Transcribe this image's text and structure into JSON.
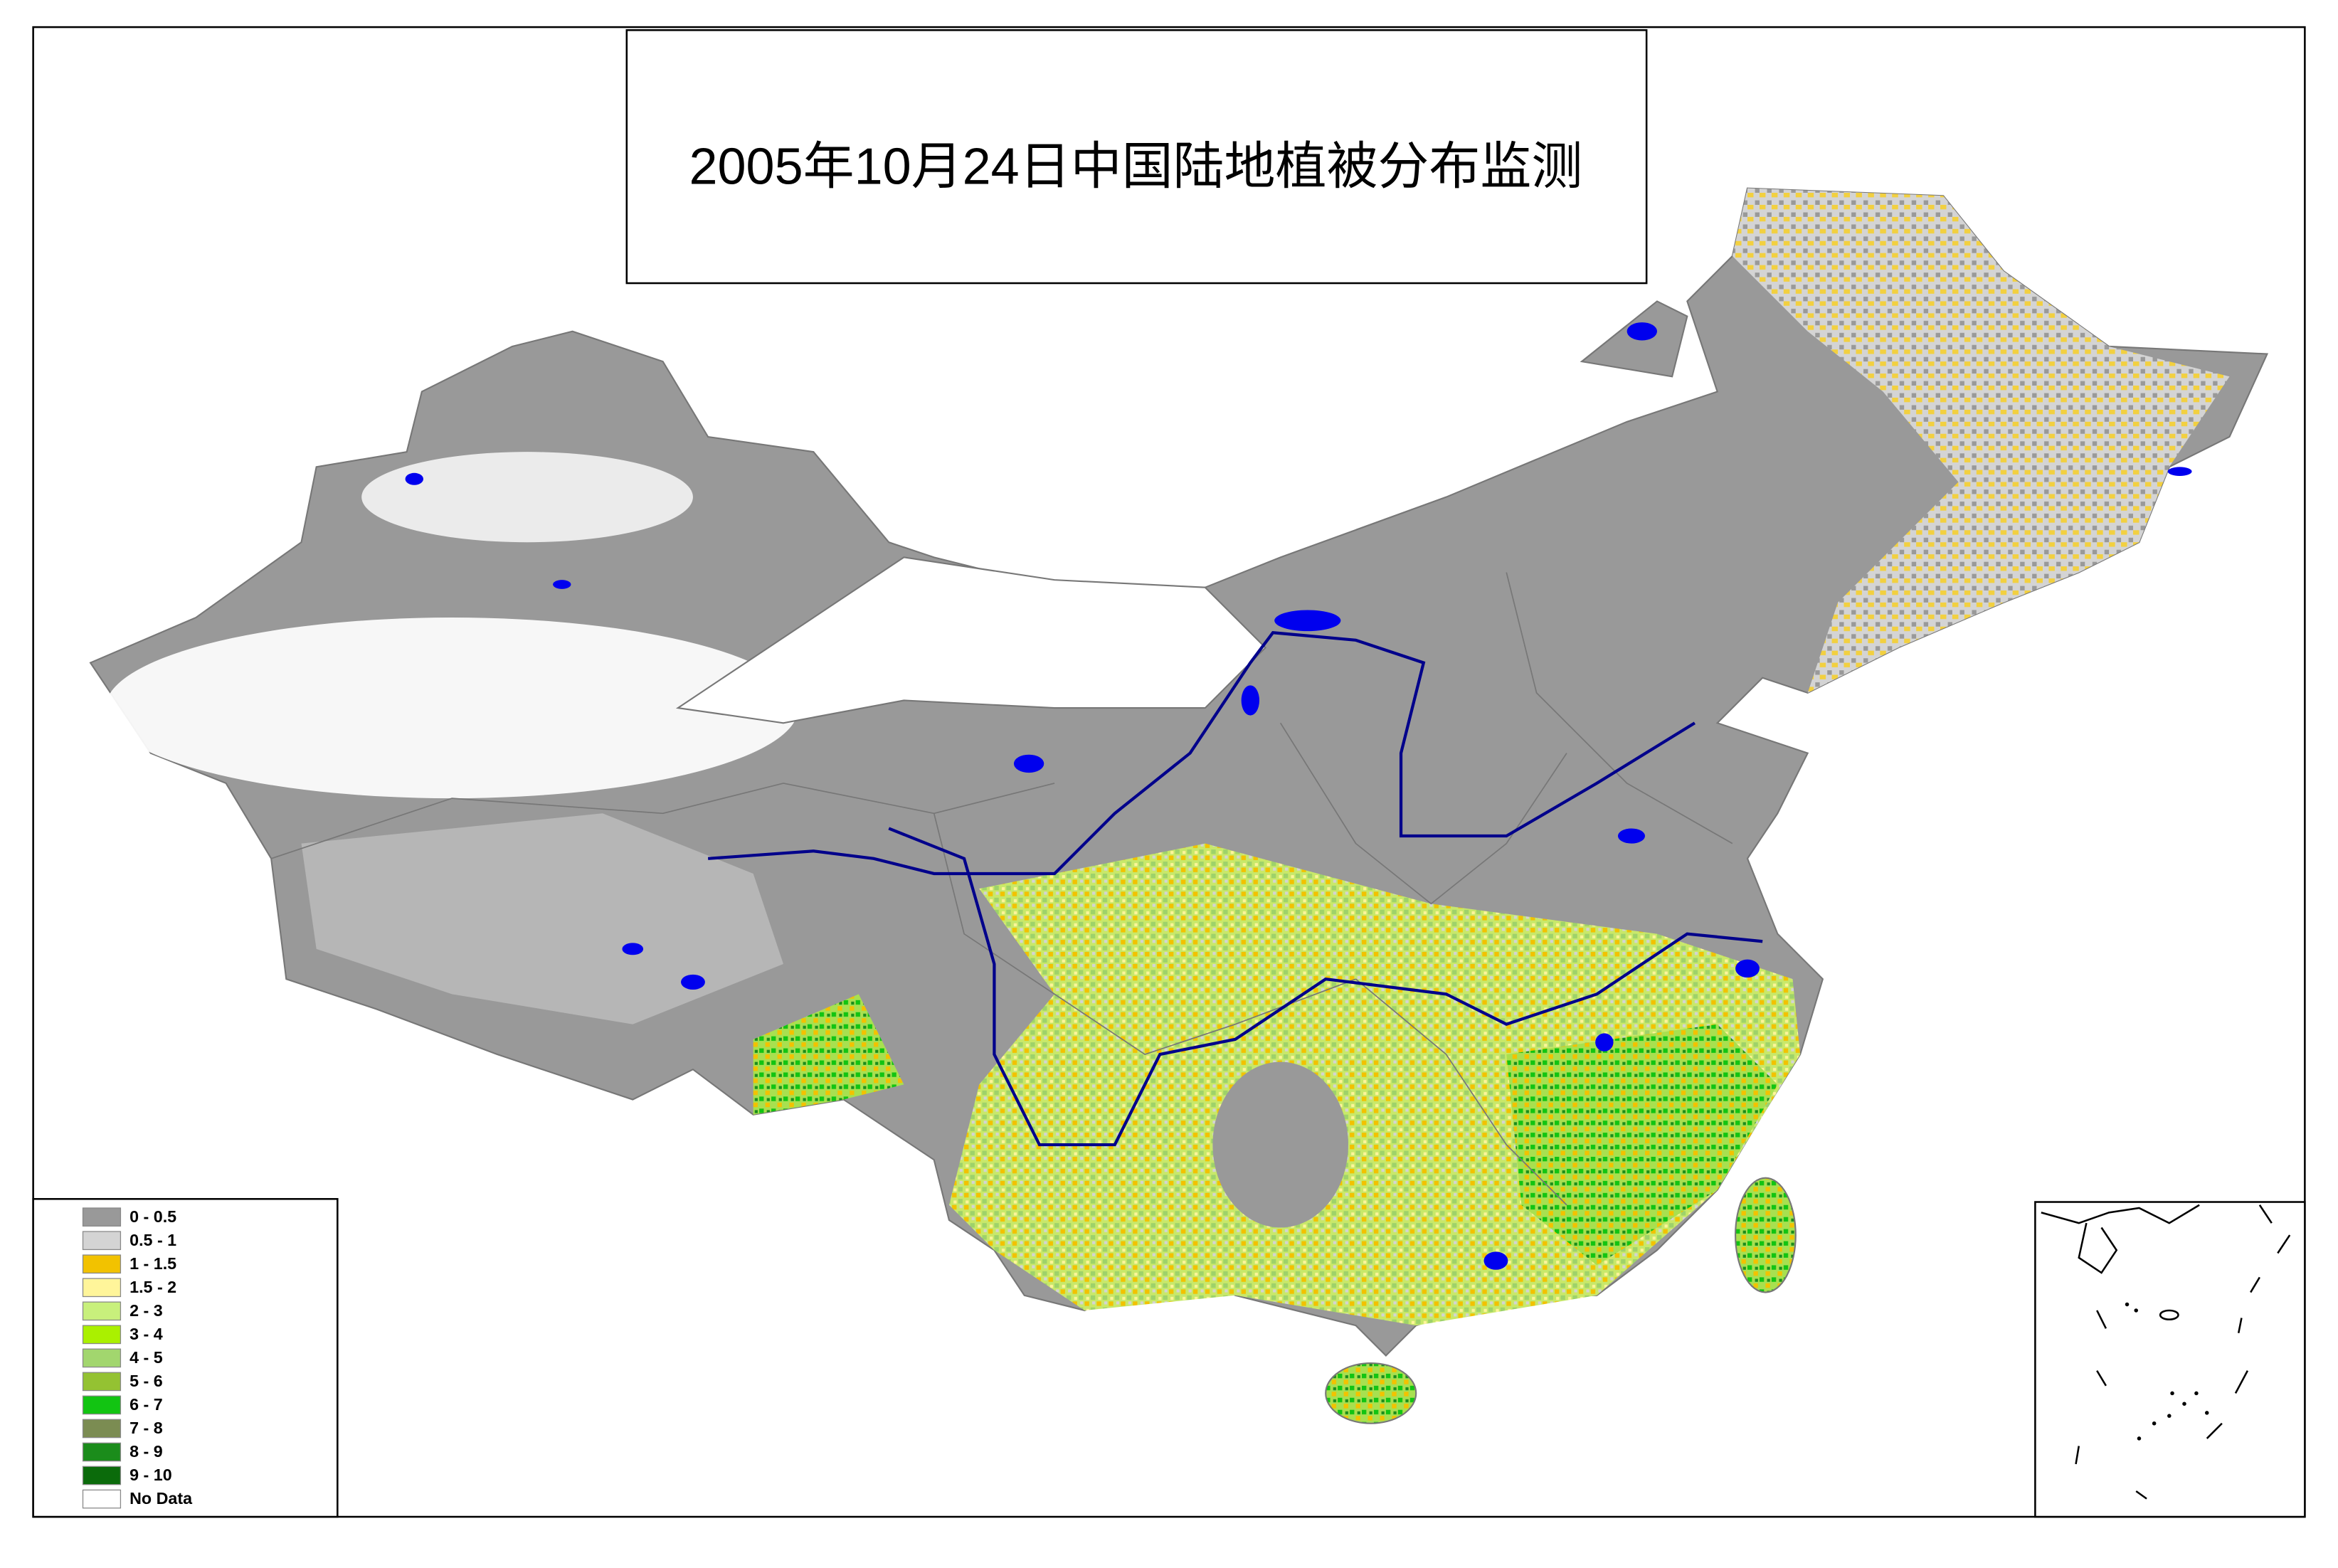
{
  "title": "2005年10月24日中国陆地植被分布监测",
  "legend": {
    "items": [
      {
        "label": "0 - 0.5",
        "color": "#999999"
      },
      {
        "label": "0.5 - 1",
        "color": "#d4d4d4"
      },
      {
        "label": "1 - 1.5",
        "color": "#f2c200"
      },
      {
        "label": "1.5 - 2",
        "color": "#fff59a"
      },
      {
        "label": "2 - 3",
        "color": "#c8f07c"
      },
      {
        "label": "3 - 4",
        "color": "#aaf000"
      },
      {
        "label": "4 - 5",
        "color": "#a2d66e"
      },
      {
        "label": "5 - 6",
        "color": "#94c232"
      },
      {
        "label": "6 - 7",
        "color": "#12c412"
      },
      {
        "label": "7 - 8",
        "color": "#7b8c52"
      },
      {
        "label": "8 - 9",
        "color": "#1b8c1b"
      },
      {
        "label": "9 - 10",
        "color": "#0b6b0b"
      },
      {
        "label": "No Data",
        "color": "#ffffff"
      }
    ]
  }
}
